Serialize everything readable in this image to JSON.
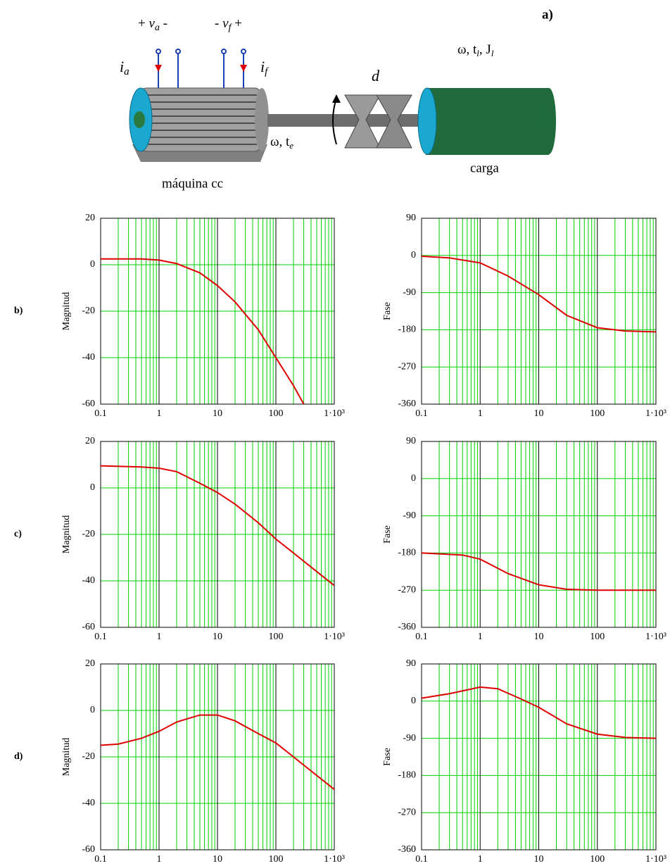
{
  "diagram": {
    "label": "a)",
    "va": {
      "pre": "+ ",
      "sym": "v",
      "sub": "a",
      "post": " -"
    },
    "vf": {
      "pre": "- ",
      "sym": "v",
      "sub": "f",
      "post": " +"
    },
    "ia": {
      "sym": "i",
      "sub": "a"
    },
    "if": {
      "sym": "i",
      "sub": "f"
    },
    "load_vars": {
      "a": "ω, t",
      "a_sub": "l",
      "b": ", J",
      "b_sub": "l"
    },
    "coupling": "d",
    "shaft": {
      "a": "ω, t",
      "a_sub": "e"
    },
    "machine": "máquina cc",
    "load": "carga"
  },
  "chart_data": [
    {
      "type": "line",
      "panel": "b)",
      "ylabel": "Magnitud",
      "log_x": true,
      "grid": true,
      "x": [
        0.1,
        0.5,
        1,
        2,
        5,
        10,
        20,
        50,
        100,
        200,
        300
      ],
      "series": [
        {
          "color": "#e00000",
          "values": [
            2.5,
            2.5,
            2,
            0.5,
            -3.5,
            -9,
            -16,
            -28,
            -40,
            -52,
            -60
          ]
        }
      ],
      "xlim": [
        0.1,
        1000
      ],
      "ylim": [
        -60,
        20
      ],
      "xticks": [
        0.1,
        1,
        10,
        100,
        {
          "value": 1000,
          "label": "1·10³"
        }
      ],
      "yticks": [
        -60,
        -40,
        -20,
        0,
        20
      ]
    },
    {
      "type": "line",
      "ylabel": "Fase",
      "log_x": true,
      "grid": true,
      "x": [
        0.1,
        0.3,
        1,
        3,
        10,
        30,
        100,
        300,
        1000
      ],
      "series": [
        {
          "color": "#e00000",
          "values": [
            -2,
            -6,
            -18,
            -50,
            -95,
            -145,
            -175,
            -183,
            -185
          ]
        }
      ],
      "xlim": [
        0.1,
        1000
      ],
      "ylim": [
        -360,
        90
      ],
      "xticks": [
        0.1,
        1,
        10,
        100,
        {
          "value": 1000,
          "label": "1·10³"
        }
      ],
      "yticks": [
        -360,
        -270,
        -180,
        -90,
        0,
        90
      ]
    },
    {
      "type": "line",
      "panel": "c)",
      "ylabel": "Magnitud",
      "log_x": true,
      "grid": true,
      "x": [
        0.1,
        0.5,
        1,
        2,
        5,
        10,
        20,
        50,
        100,
        200,
        500,
        1000
      ],
      "series": [
        {
          "color": "#e00000",
          "values": [
            9.5,
            9,
            8.5,
            7,
            2,
            -2,
            -7,
            -15,
            -22,
            -28,
            -36,
            -42
          ]
        }
      ],
      "xlim": [
        0.1,
        1000
      ],
      "ylim": [
        -60,
        20
      ],
      "xticks": [
        0.1,
        1,
        10,
        100,
        {
          "value": 1000,
          "label": "1·10³"
        }
      ],
      "yticks": [
        -60,
        -40,
        -20,
        0,
        20
      ]
    },
    {
      "type": "line",
      "ylabel": "Fase",
      "log_x": true,
      "grid": true,
      "x": [
        0.1,
        0.5,
        1,
        3,
        10,
        30,
        100,
        1000
      ],
      "series": [
        {
          "color": "#e00000",
          "values": [
            -180,
            -185,
            -195,
            -230,
            -257,
            -268,
            -270,
            -270
          ]
        }
      ],
      "xlim": [
        0.1,
        1000
      ],
      "ylim": [
        -360,
        90
      ],
      "xticks": [
        0.1,
        1,
        10,
        100,
        {
          "value": 1000,
          "label": "1·10³"
        }
      ],
      "yticks": [
        -360,
        -270,
        -180,
        -90,
        0,
        90
      ]
    },
    {
      "type": "line",
      "panel": "d)",
      "ylabel": "Magnitud",
      "log_x": true,
      "grid": true,
      "x": [
        0.1,
        0.2,
        0.5,
        1,
        2,
        5,
        10,
        20,
        50,
        100,
        200,
        500,
        1000
      ],
      "series": [
        {
          "color": "#e00000",
          "values": [
            -15,
            -14.5,
            -12,
            -9,
            -5,
            -2,
            -2,
            -4.5,
            -10,
            -14,
            -20,
            -28,
            -34
          ]
        }
      ],
      "xlim": [
        0.1,
        1000
      ],
      "ylim": [
        -60,
        20
      ],
      "xticks": [
        0.1,
        1,
        10,
        100,
        {
          "value": 1000,
          "label": "1·10³"
        }
      ],
      "yticks": [
        -60,
        -40,
        -20,
        0,
        20
      ]
    },
    {
      "type": "line",
      "ylabel": "Fase",
      "log_x": true,
      "grid": true,
      "x": [
        0.1,
        0.3,
        1,
        2,
        5,
        10,
        30,
        100,
        300,
        1000
      ],
      "series": [
        {
          "color": "#e00000",
          "values": [
            7,
            18,
            34,
            30,
            5,
            -15,
            -55,
            -80,
            -88,
            -90
          ]
        }
      ],
      "xlim": [
        0.1,
        1000
      ],
      "ylim": [
        -360,
        90
      ],
      "xticks": [
        0.1,
        1,
        10,
        100,
        {
          "value": 1000,
          "label": "1·10³"
        }
      ],
      "yticks": [
        -360,
        -270,
        -180,
        -90,
        0,
        90
      ]
    }
  ]
}
